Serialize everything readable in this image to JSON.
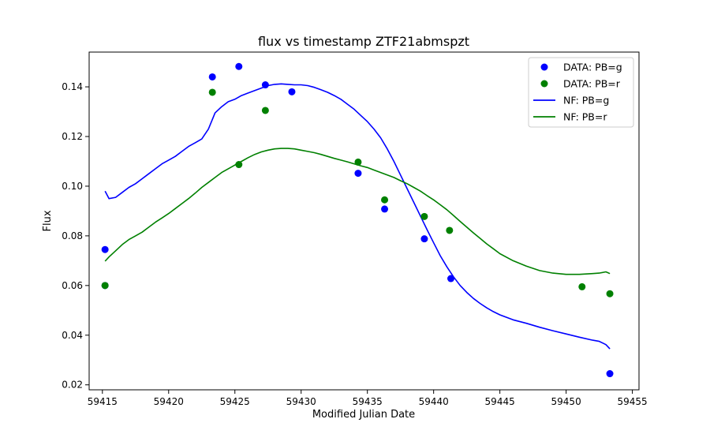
{
  "chart_data": {
    "type": "scatter",
    "title": "flux vs timestamp ZTF21abmspzt",
    "xlabel": "Modified Julian Date",
    "ylabel": "Flux",
    "xlim": [
      59414.0,
      59455.5
    ],
    "ylim": [
      0.018,
      0.154
    ],
    "xticks": [
      59415,
      59420,
      59425,
      59430,
      59435,
      59440,
      59445,
      59450,
      59455
    ],
    "yticks": [
      0.02,
      0.04,
      0.06,
      0.08,
      0.1,
      0.12,
      0.14
    ],
    "xtick_labels": [
      "59415",
      "59420",
      "59425",
      "59430",
      "59435",
      "59440",
      "59445",
      "59450",
      "59455"
    ],
    "ytick_labels": [
      "0.02",
      "0.04",
      "0.06",
      "0.08",
      "0.10",
      "0.12",
      "0.14"
    ],
    "grid": false,
    "legend_position": "top-right",
    "legend": [
      {
        "label": "DATA: PB=g",
        "kind": "marker",
        "color": "#0000ff"
      },
      {
        "label": "DATA: PB=r",
        "kind": "marker",
        "color": "#008000"
      },
      {
        "label": "NF: PB=g",
        "kind": "line",
        "color": "#0000ff"
      },
      {
        "label": "NF: PB=r",
        "kind": "line",
        "color": "#008000"
      }
    ],
    "series": [
      {
        "name": "DATA: PB=g",
        "kind": "scatter",
        "color": "#0000ff",
        "x": [
          59415.2,
          59415.2,
          59423.3,
          59425.3,
          59427.3,
          59429.3,
          59434.3,
          59436.3,
          59439.3,
          59441.3,
          59453.3
        ],
        "y": [
          0.0745,
          0.06,
          0.144,
          0.1482,
          0.1408,
          0.138,
          0.1052,
          0.0908,
          0.0788,
          0.0628,
          0.0245
        ]
      },
      {
        "name": "DATA: PB=r",
        "kind": "scatter",
        "color": "#008000",
        "x": [
          59415.2,
          59423.3,
          59425.3,
          59427.3,
          59434.3,
          59436.3,
          59439.3,
          59441.2,
          59451.2,
          59453.3
        ],
        "y": [
          0.06,
          0.1378,
          0.1087,
          0.1305,
          0.1097,
          0.0945,
          0.0878,
          0.0822,
          0.0595,
          0.0567
        ]
      },
      {
        "name": "NF: PB=g",
        "kind": "line",
        "color": "#0000ff",
        "x": [
          59415.2,
          59415.5,
          59416.0,
          59416.5,
          59417.0,
          59417.5,
          59418.0,
          59418.5,
          59419.0,
          59419.5,
          59420.0,
          59420.5,
          59421.0,
          59421.5,
          59422.0,
          59422.5,
          59423.0,
          59423.5,
          59424.0,
          59424.5,
          59425.0,
          59425.5,
          59426.0,
          59426.5,
          59427.0,
          59427.5,
          59428.0,
          59428.5,
          59429.0,
          59429.5,
          59430.0,
          59430.5,
          59431.0,
          59431.5,
          59432.0,
          59432.5,
          59433.0,
          59433.5,
          59434.0,
          59434.5,
          59435.0,
          59435.5,
          59436.0,
          59436.5,
          59437.0,
          59437.5,
          59438.0,
          59438.5,
          59439.0,
          59439.5,
          59440.0,
          59440.5,
          59441.0,
          59441.5,
          59442.0,
          59442.5,
          59443.0,
          59443.5,
          59444.0,
          59444.5,
          59445.0,
          59446.0,
          59447.0,
          59448.0,
          59449.0,
          59450.0,
          59451.0,
          59452.0,
          59452.5,
          59453.0,
          59453.3
        ],
        "y": [
          0.098,
          0.095,
          0.0955,
          0.0975,
          0.0995,
          0.101,
          0.103,
          0.105,
          0.107,
          0.109,
          0.1105,
          0.112,
          0.114,
          0.116,
          0.1175,
          0.119,
          0.123,
          0.1295,
          0.132,
          0.134,
          0.135,
          0.1365,
          0.1375,
          0.1385,
          0.1395,
          0.1405,
          0.141,
          0.1412,
          0.141,
          0.1408,
          0.1408,
          0.1405,
          0.1398,
          0.1388,
          0.1378,
          0.1365,
          0.135,
          0.133,
          0.131,
          0.1285,
          0.126,
          0.123,
          0.1195,
          0.115,
          0.11,
          0.1045,
          0.099,
          0.0935,
          0.088,
          0.0825,
          0.0772,
          0.072,
          0.0675,
          0.0635,
          0.06,
          0.0572,
          0.0548,
          0.0528,
          0.051,
          0.0495,
          0.0482,
          0.0462,
          0.0448,
          0.0432,
          0.0418,
          0.0405,
          0.0392,
          0.038,
          0.0375,
          0.0362,
          0.0345
        ]
      },
      {
        "name": "NF: PB=r",
        "kind": "line",
        "color": "#008000",
        "x": [
          59415.2,
          59415.5,
          59416.0,
          59416.5,
          59417.0,
          59417.5,
          59418.0,
          59418.5,
          59419.0,
          59419.5,
          59420.0,
          59420.5,
          59421.0,
          59421.5,
          59422.0,
          59422.5,
          59423.0,
          59423.5,
          59424.0,
          59424.5,
          59425.0,
          59425.5,
          59426.0,
          59426.5,
          59427.0,
          59427.5,
          59428.0,
          59428.5,
          59429.0,
          59429.5,
          59430.0,
          59430.5,
          59431.0,
          59431.5,
          59432.0,
          59432.5,
          59433.0,
          59433.5,
          59434.0,
          59434.5,
          59435.0,
          59435.5,
          59436.0,
          59436.5,
          59437.0,
          59437.5,
          59438.0,
          59438.5,
          59439.0,
          59439.5,
          59440.0,
          59440.5,
          59441.0,
          59441.5,
          59442.0,
          59442.5,
          59443.0,
          59443.5,
          59444.0,
          59444.5,
          59445.0,
          59446.0,
          59447.0,
          59448.0,
          59449.0,
          59450.0,
          59451.0,
          59452.0,
          59452.5,
          59453.0,
          59453.3
        ],
        "y": [
          0.0698,
          0.0715,
          0.074,
          0.0765,
          0.0785,
          0.08,
          0.0815,
          0.0835,
          0.0855,
          0.0872,
          0.089,
          0.091,
          0.093,
          0.095,
          0.0972,
          0.0995,
          0.1015,
          0.1035,
          0.1055,
          0.107,
          0.1085,
          0.11,
          0.1115,
          0.1128,
          0.1138,
          0.1145,
          0.115,
          0.1152,
          0.1152,
          0.115,
          0.1145,
          0.114,
          0.1135,
          0.1128,
          0.112,
          0.1112,
          0.1105,
          0.1098,
          0.109,
          0.1082,
          0.1075,
          0.1065,
          0.1055,
          0.1045,
          0.1035,
          0.1022,
          0.101,
          0.0995,
          0.098,
          0.0962,
          0.0945,
          0.0925,
          0.0905,
          0.0882,
          0.0858,
          0.0835,
          0.0812,
          0.079,
          0.0768,
          0.0748,
          0.0728,
          0.07,
          0.0678,
          0.066,
          0.065,
          0.0645,
          0.0645,
          0.0648,
          0.065,
          0.0655,
          0.0648
        ]
      }
    ]
  }
}
